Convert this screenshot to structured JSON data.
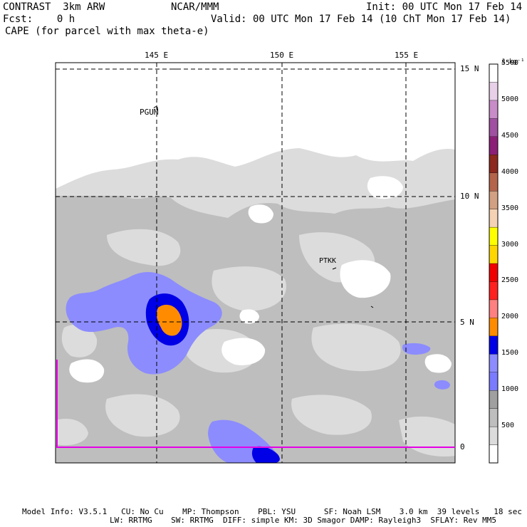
{
  "header": {
    "line1_left": "CONTRAST  3km ARW",
    "line1_center": "NCAR/MMM",
    "line1_right": "Init: 00 UTC Mon 17 Feb 14",
    "line2_left": "Fcst:    0 h",
    "line2_right": "Valid: 00 UTC Mon 17 Feb 14 (10 ChT Mon 17 Feb 14)",
    "line3_left": "CAPE (for parcel with max theta-e)"
  },
  "map": {
    "lon_labels": [
      "145 E",
      "150 E",
      "155 E"
    ],
    "lat_labels": [
      "15 N",
      "10 N",
      "5 N",
      "0"
    ],
    "stations": [
      {
        "id": "PGUM"
      },
      {
        "id": "PTKK"
      }
    ]
  },
  "colorbar": {
    "unit": "J kg⁻¹",
    "tick_labels": [
      "500",
      "1000",
      "1500",
      "2000",
      "2500",
      "3000",
      "3500",
      "4000",
      "4500",
      "5000",
      "5500"
    ],
    "colors": [
      "#ffffff",
      "#dcdcdc",
      "#bebebe",
      "#a0a0a0",
      "#7b7bff",
      "#8c8cff",
      "#0000e6",
      "#ff8c00",
      "#ff8080",
      "#ff2020",
      "#f00000",
      "#ffd700",
      "#ffff00",
      "#f5d2b4",
      "#d2a082",
      "#b4644b",
      "#8c281e",
      "#8c1e78",
      "#a050a0",
      "#c88cc8",
      "#e8d0e8",
      "#ffffff"
    ]
  },
  "footer": {
    "line1": "Model Info: V3.5.1   CU: No Cu    MP: Thompson    PBL: YSU      SF: Noah LSM    3.0 km  39 levels   18 sec",
    "line2": "LW: RRTMG    SW: RRTMG  DIFF: simple KM: 3D Smagor DAMP: Rayleigh3  SFLAY: Rev MM5"
  }
}
